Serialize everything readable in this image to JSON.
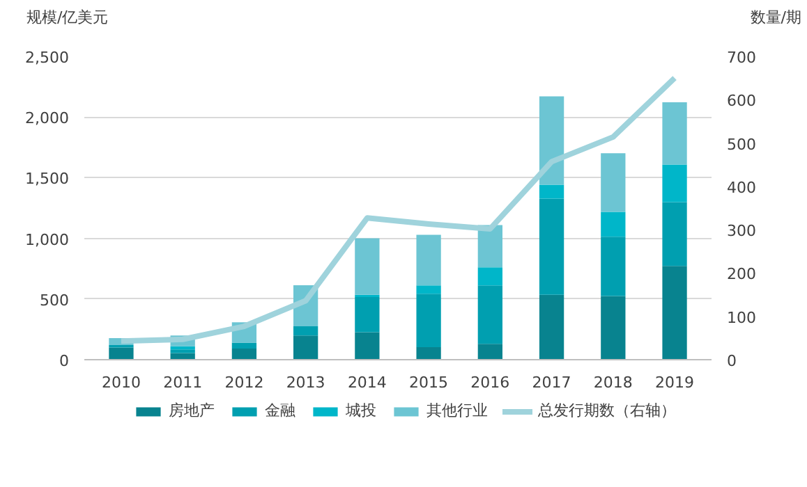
{
  "chart_data": {
    "type": "bar",
    "stacked": true,
    "ylabel": "规模/亿美元",
    "y2label": "数量/期",
    "categories": [
      "2010",
      "2011",
      "2012",
      "2013",
      "2014",
      "2015",
      "2016",
      "2017",
      "2018",
      "2019"
    ],
    "series": [
      {
        "name": "房地产",
        "color": "#08838f",
        "values": [
          100,
          54,
          92,
          199,
          226,
          103,
          130,
          535,
          524,
          772
        ]
      },
      {
        "name": "金融",
        "color": "#009fb0",
        "values": [
          20,
          30,
          49,
          76,
          290,
          440,
          482,
          792,
          489,
          527
        ]
      },
      {
        "name": "城投",
        "color": "#00b6c9",
        "values": [
          null,
          27,
          null,
          null,
          19,
          69,
          149,
          115,
          206,
          310
        ]
      },
      {
        "name": "其他行业",
        "color": "#6cc5d3",
        "values": [
          58,
          88,
          167,
          339,
          466,
          417,
          348,
          729,
          482,
          513
        ]
      },
      {
        "name": "总发行期数（右轴）",
        "color": "#9fd3dc",
        "type": "line",
        "axis": "y2",
        "values": [
          43,
          47,
          77,
          136,
          327,
          313,
          302,
          457,
          514,
          650
        ]
      }
    ],
    "ylim": [
      0,
      2500
    ],
    "yticks": [
      0,
      {
        "value": 500,
        "label": "500"
      },
      {
        "value": 1000,
        "label": "1,000"
      },
      {
        "value": 1500,
        "label": "1,500"
      },
      {
        "value": 2000,
        "label": "2,000"
      },
      {
        "value": 2500,
        "label": "2,500"
      }
    ],
    "y2lim": [
      0,
      700
    ],
    "y2ticks": [
      0,
      100,
      200,
      300,
      400,
      500,
      600,
      700
    ],
    "grid": "y",
    "legend": "bottom"
  }
}
